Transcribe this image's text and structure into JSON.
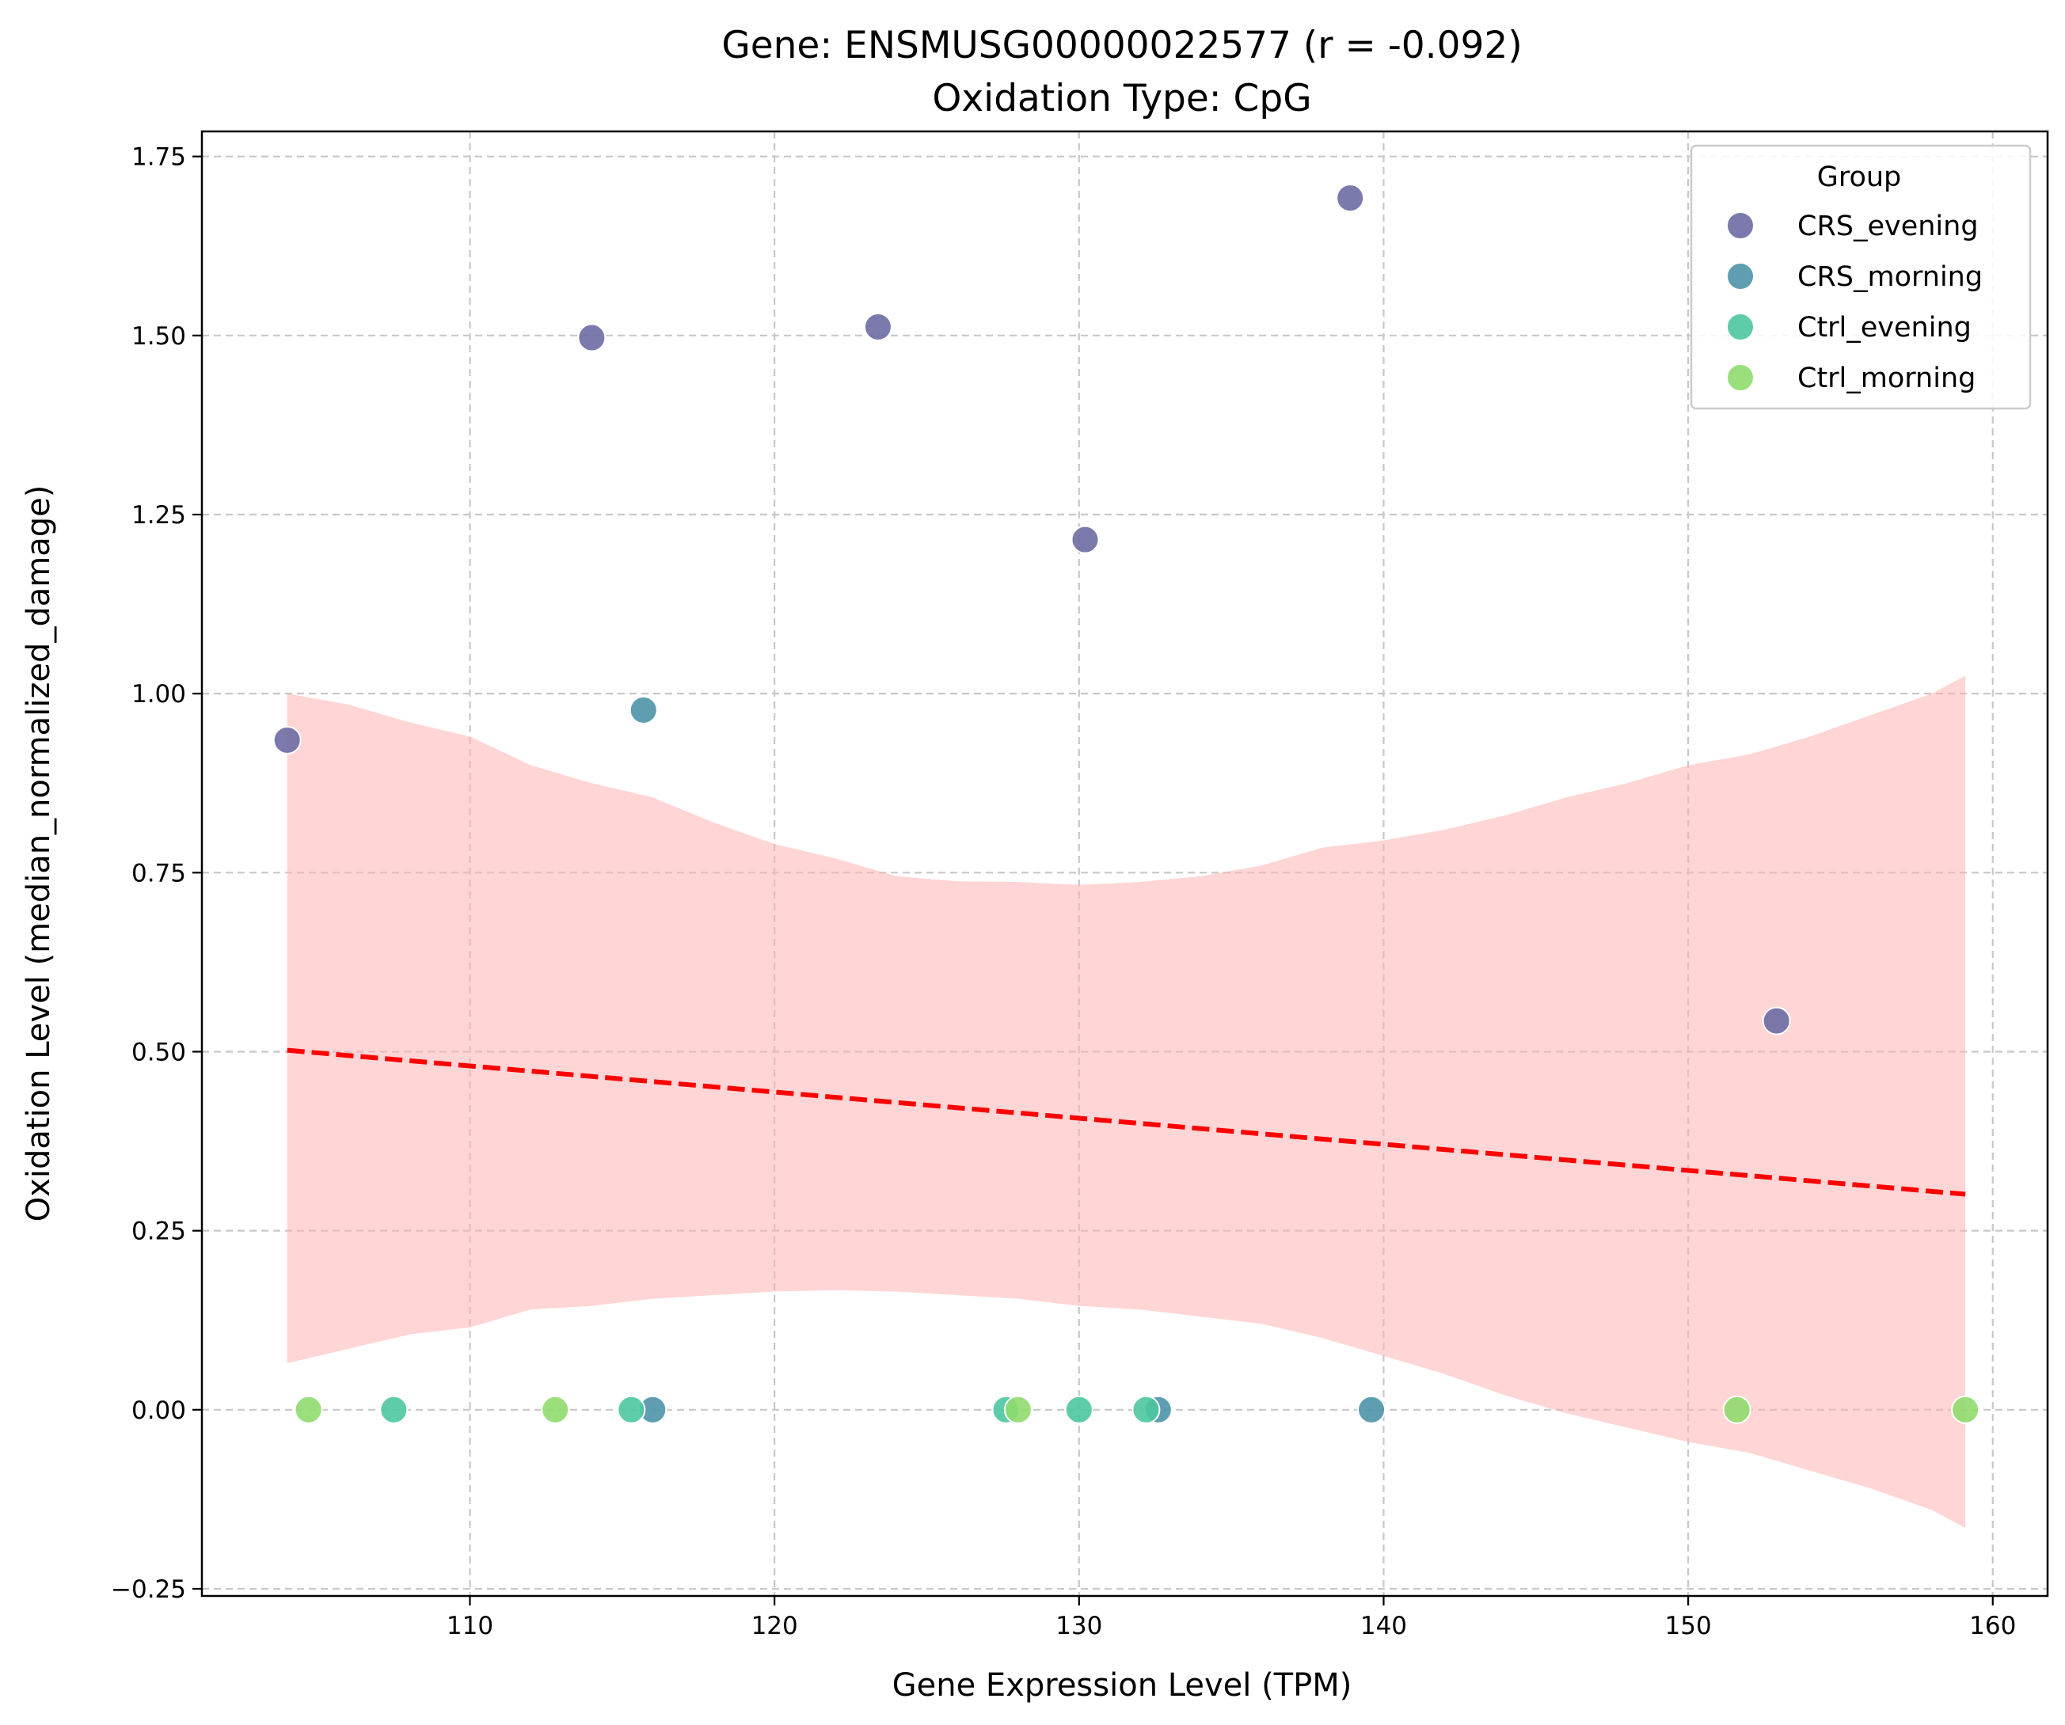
{
  "chart_data": {
    "type": "scatter",
    "title": "Gene: ENSMUSG00000022577 (r = -0.092)",
    "subtitle": "Oxidation Type: CpG",
    "xlabel": "Gene Expression Level (TPM)",
    "ylabel": "Oxidation Level (median_normalized_damage)",
    "xlim": [
      101.2,
      161.8
    ],
    "ylim": [
      -0.26,
      1.785
    ],
    "xticks": [
      110,
      120,
      130,
      140,
      150,
      160
    ],
    "yticks": [
      -0.25,
      0.0,
      0.25,
      0.5,
      0.75,
      1.0,
      1.25,
      1.5,
      1.75
    ],
    "xtick_labels": [
      "110",
      "120",
      "130",
      "140",
      "150",
      "160"
    ],
    "ytick_labels": [
      "−0.25",
      "0.00",
      "0.25",
      "0.50",
      "0.75",
      "1.00",
      "1.25",
      "1.50",
      "1.75"
    ],
    "grid": true,
    "legend": {
      "title": "Group",
      "placement": "top-right"
    },
    "series": [
      {
        "name": "CRS_evening",
        "color": "#6b6ba3",
        "points": [
          {
            "x": 104.0,
            "y": 0.935
          },
          {
            "x": 114.0,
            "y": 1.497
          },
          {
            "x": 123.4,
            "y": 1.512
          },
          {
            "x": 130.2,
            "y": 1.215
          },
          {
            "x": 138.9,
            "y": 1.692
          },
          {
            "x": 152.9,
            "y": 0.543
          }
        ]
      },
      {
        "name": "CRS_morning",
        "color": "#4e93a8",
        "points": [
          {
            "x": 115.7,
            "y": 0.977
          },
          {
            "x": 116.0,
            "y": 0.0
          },
          {
            "x": 132.6,
            "y": 0.0
          },
          {
            "x": 139.6,
            "y": 0.0
          }
        ]
      },
      {
        "name": "Ctrl_evening",
        "color": "#4ec7a0",
        "points": [
          {
            "x": 107.5,
            "y": 0.0
          },
          {
            "x": 115.3,
            "y": 0.0
          },
          {
            "x": 127.6,
            "y": 0.0
          },
          {
            "x": 130.0,
            "y": 0.0
          },
          {
            "x": 132.2,
            "y": 0.0
          }
        ]
      },
      {
        "name": "Ctrl_morning",
        "color": "#8fdc6e",
        "points": [
          {
            "x": 104.7,
            "y": 0.0
          },
          {
            "x": 112.8,
            "y": 0.0
          },
          {
            "x": 128.0,
            "y": 0.0
          },
          {
            "x": 151.6,
            "y": 0.0
          },
          {
            "x": 159.1,
            "y": 0.0
          }
        ]
      }
    ],
    "regression": {
      "color": "#ff0000",
      "x": [
        104.0,
        159.1
      ],
      "y": [
        0.502,
        0.301
      ]
    },
    "confidence_band": {
      "color": "#ffb3b3",
      "x": [
        104,
        106,
        108,
        110,
        112,
        114,
        116,
        118,
        120,
        122,
        124,
        126,
        128,
        130,
        132,
        134,
        136,
        138,
        140,
        142,
        144,
        146,
        148,
        150,
        152,
        154,
        156,
        158,
        159.1
      ],
      "upper": [
        1.0,
        0.985,
        0.96,
        0.94,
        0.9,
        0.875,
        0.855,
        0.82,
        0.79,
        0.77,
        0.745,
        0.738,
        0.737,
        0.733,
        0.737,
        0.745,
        0.76,
        0.785,
        0.795,
        0.81,
        0.83,
        0.855,
        0.875,
        0.9,
        0.915,
        0.94,
        0.97,
        1.0,
        1.025
      ],
      "lower": [
        0.065,
        0.085,
        0.105,
        0.115,
        0.14,
        0.145,
        0.155,
        0.16,
        0.165,
        0.167,
        0.165,
        0.16,
        0.155,
        0.145,
        0.14,
        0.13,
        0.12,
        0.1,
        0.075,
        0.05,
        0.02,
        -0.005,
        -0.025,
        -0.045,
        -0.06,
        -0.085,
        -0.11,
        -0.14,
        -0.165
      ]
    }
  }
}
